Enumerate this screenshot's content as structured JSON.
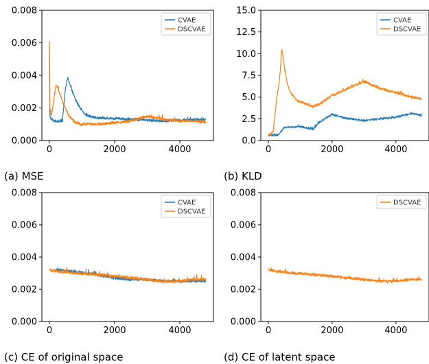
{
  "colors": {
    "cvae": "#1f77b4",
    "dscvae": "#ff7f0e"
  },
  "chart_data": [
    {
      "type": "line",
      "caption": "(a) MSE",
      "xlim": [
        0,
        4800
      ],
      "ylim": [
        0,
        0.008
      ],
      "xticks": [
        0,
        2000,
        4000
      ],
      "xtick_labels": [
        "0",
        "2000",
        "4000"
      ],
      "yticks": [
        0,
        0.002,
        0.004,
        0.006,
        0.008
      ],
      "ytick_labels": [
        "0.000",
        "0.002",
        "0.004",
        "0.006",
        "0.008"
      ],
      "grid": false,
      "legend": "top-right",
      "series": [
        {
          "name": "CVAE",
          "color": "#1f77b4",
          "noise": 7e-05,
          "x": [
            0,
            10,
            60,
            150,
            400,
            480,
            560,
            650,
            800,
            950,
            1100,
            1400,
            2000,
            2500,
            3000,
            3500,
            4000,
            4500,
            4800
          ],
          "y": [
            0.0058,
            0.0015,
            0.0013,
            0.0012,
            0.0012,
            0.003,
            0.0039,
            0.0033,
            0.0025,
            0.002,
            0.0016,
            0.0014,
            0.00135,
            0.0013,
            0.00125,
            0.0012,
            0.00125,
            0.0013,
            0.0013
          ]
        },
        {
          "name": "DSCVAE",
          "color": "#ff7f0e",
          "noise": 8e-05,
          "x": [
            0,
            15,
            60,
            200,
            300,
            450,
            600,
            800,
            1000,
            1500,
            2000,
            2500,
            3000,
            3500,
            4000,
            4500,
            4800
          ],
          "y": [
            0.0058,
            0.002,
            0.0015,
            0.0034,
            0.003,
            0.0022,
            0.0015,
            0.0011,
            0.001,
            0.001,
            0.0011,
            0.0012,
            0.0015,
            0.0013,
            0.0012,
            0.0012,
            0.0011
          ]
        }
      ]
    },
    {
      "type": "line",
      "caption": "(b) KLD",
      "xlim": [
        0,
        4800
      ],
      "ylim": [
        0,
        15
      ],
      "xticks": [
        0,
        2000,
        4000
      ],
      "xtick_labels": [
        "0",
        "2000",
        "4000"
      ],
      "yticks": [
        0,
        2.5,
        5,
        7.5,
        10,
        12.5,
        15
      ],
      "ytick_labels": [
        "0.0",
        "2.5",
        "5.0",
        "7.5",
        "10.0",
        "12.5",
        "15.0"
      ],
      "grid": false,
      "legend": "top-right",
      "series": [
        {
          "name": "CVAE",
          "color": "#1f77b4",
          "noise": 0.09,
          "x": [
            0,
            300,
            500,
            1000,
            1400,
            1600,
            1800,
            2000,
            2400,
            3000,
            3500,
            4000,
            4500,
            4800
          ],
          "y": [
            0.6,
            0.6,
            1.5,
            1.6,
            1.3,
            2.1,
            2.6,
            3.0,
            2.6,
            2.3,
            2.5,
            2.7,
            3.1,
            2.9
          ]
        },
        {
          "name": "DSCVAE",
          "color": "#ff7f0e",
          "noise": 0.12,
          "x": [
            0,
            150,
            250,
            350,
            420,
            470,
            520,
            600,
            700,
            900,
            1200,
            1400,
            1600,
            2000,
            2500,
            3000,
            3500,
            4000,
            4500,
            4800
          ],
          "y": [
            0.6,
            1.0,
            4.5,
            7.0,
            10.5,
            9.5,
            8.0,
            6.5,
            5.5,
            4.6,
            4.2,
            3.9,
            4.2,
            5.2,
            6.0,
            6.8,
            6.0,
            5.5,
            5.0,
            4.8
          ]
        }
      ]
    },
    {
      "type": "line",
      "caption": "(c) CE of original space",
      "xlim": [
        0,
        4800
      ],
      "ylim": [
        0,
        0.008
      ],
      "xticks": [
        0,
        2000,
        4000
      ],
      "xtick_labels": [
        "0",
        "2000",
        "4000"
      ],
      "yticks": [
        0,
        0.002,
        0.004,
        0.006,
        0.008
      ],
      "ytick_labels": [
        "0.000",
        "0.002",
        "0.004",
        "0.006",
        "0.008"
      ],
      "grid": false,
      "legend": "top-right",
      "series": [
        {
          "name": "CVAE",
          "color": "#1f77b4",
          "noise": 8e-05,
          "x": [
            200,
            800,
            1500,
            2000,
            2500,
            3000,
            3500,
            4000,
            4500,
            4800
          ],
          "y": [
            0.0032,
            0.0031,
            0.0029,
            0.0027,
            0.0026,
            0.0026,
            0.0025,
            0.0025,
            0.0025,
            0.0025
          ]
        },
        {
          "name": "DSCVAE",
          "color": "#ff7f0e",
          "noise": 9e-05,
          "x": [
            0,
            300,
            800,
            1500,
            2000,
            2500,
            3000,
            3500,
            4000,
            4500,
            4800
          ],
          "y": [
            0.0032,
            0.0031,
            0.003,
            0.0029,
            0.0028,
            0.0027,
            0.0026,
            0.0025,
            0.0025,
            0.0026,
            0.0026
          ]
        }
      ]
    },
    {
      "type": "line",
      "caption": "(d) CE of latent space",
      "xlim": [
        0,
        4800
      ],
      "ylim": [
        0,
        0.008
      ],
      "xticks": [
        0,
        2000,
        4000
      ],
      "xtick_labels": [
        "0",
        "2000",
        "4000"
      ],
      "yticks": [
        0,
        0.002,
        0.004,
        0.006,
        0.008
      ],
      "ytick_labels": [
        "0.000",
        "0.002",
        "0.004",
        "0.006",
        "0.008"
      ],
      "grid": false,
      "legend": "top-right",
      "series": [
        {
          "name": "DSCVAE",
          "color": "#ff7f0e",
          "noise": 8e-05,
          "x": [
            0,
            300,
            800,
            1500,
            2000,
            2500,
            3000,
            3500,
            4000,
            4500,
            4800
          ],
          "y": [
            0.0032,
            0.0031,
            0.003,
            0.0029,
            0.0028,
            0.0027,
            0.0026,
            0.0025,
            0.0025,
            0.0026,
            0.0026
          ]
        }
      ]
    }
  ]
}
